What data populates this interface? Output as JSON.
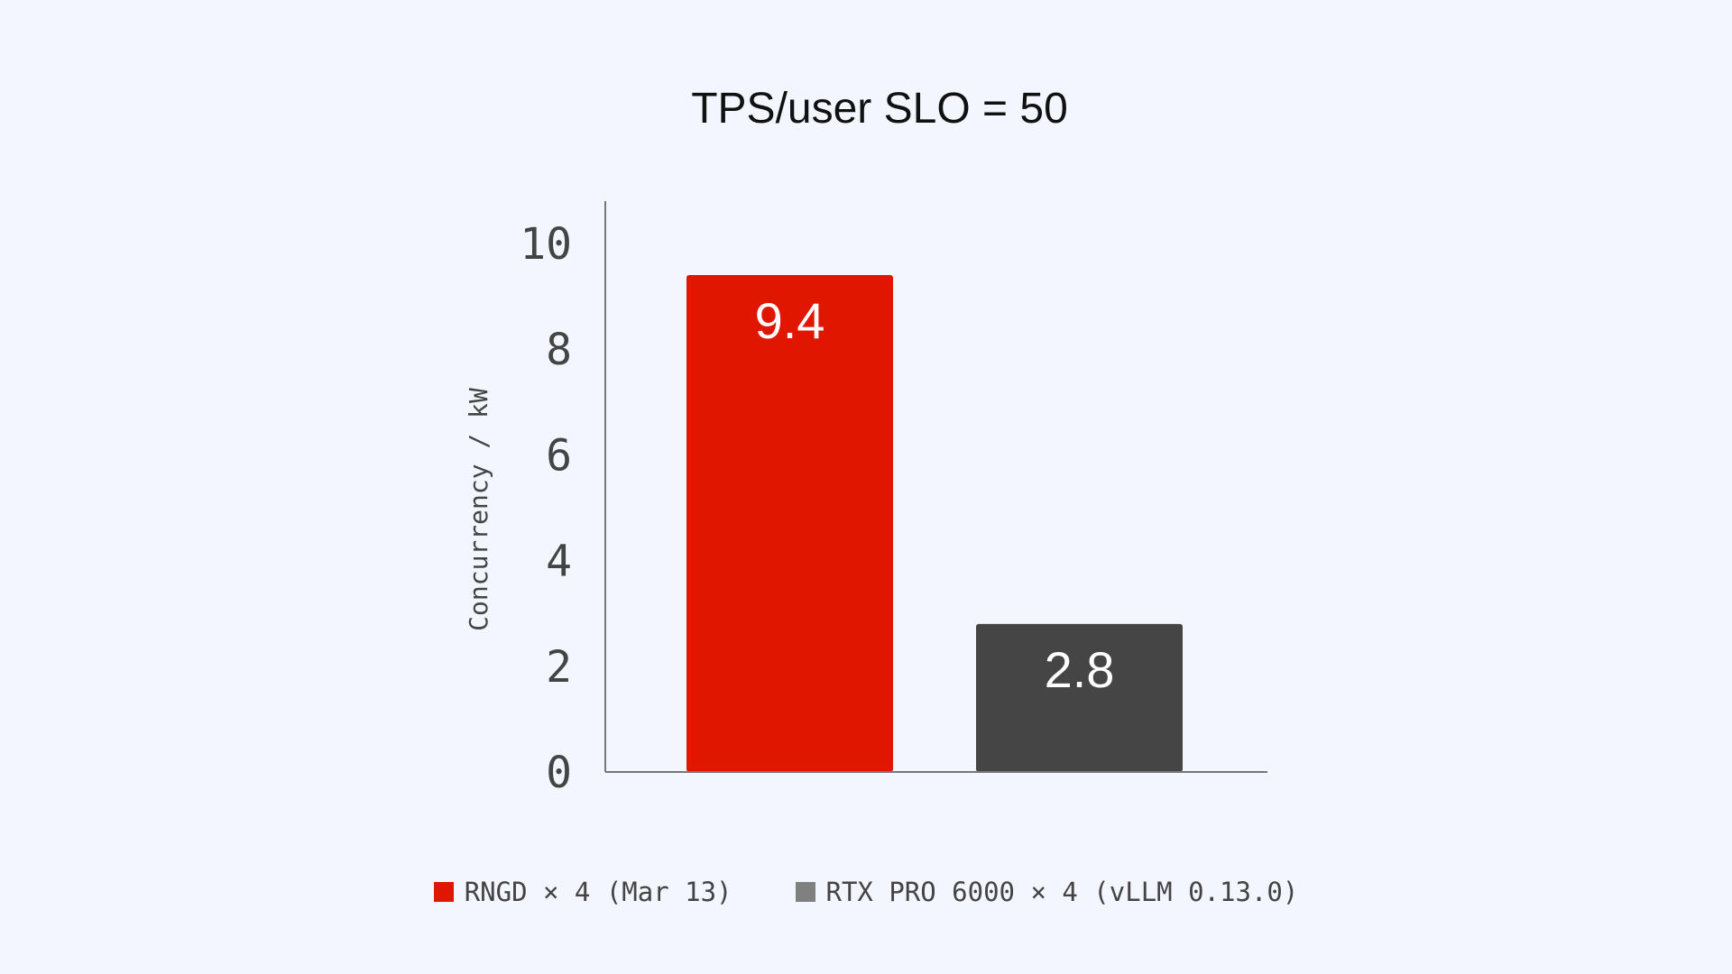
{
  "colors": {
    "background": "#f3f6fe",
    "axis": "#777777",
    "rngd": "#e01600",
    "rtx_bar": "#454545",
    "rtx_legend": "#808080"
  },
  "chart_data": {
    "type": "bar",
    "title": "TPS/user SLO = 50",
    "ylabel": "Concurrency / kW",
    "xlabel": "",
    "ylim": [
      0,
      10.8
    ],
    "yticks": [
      0,
      2,
      4,
      6,
      8,
      10
    ],
    "grid": false,
    "legend_position": "bottom",
    "series": [
      {
        "name": "RNGD × 4 (Mar 13)",
        "value": 9.4,
        "label": "9.4",
        "color": "#e01600"
      },
      {
        "name": "RTX PRO 6000 × 4 (vLLM 0.13.0)",
        "value": 2.8,
        "label": "2.8",
        "color": "#454545"
      }
    ],
    "legend": [
      {
        "label": "RNGD × 4 (Mar 13)",
        "color": "#e01600"
      },
      {
        "label": "RTX PRO 6000 × 4 (vLLM 0.13.0)",
        "color": "#808080"
      }
    ]
  }
}
